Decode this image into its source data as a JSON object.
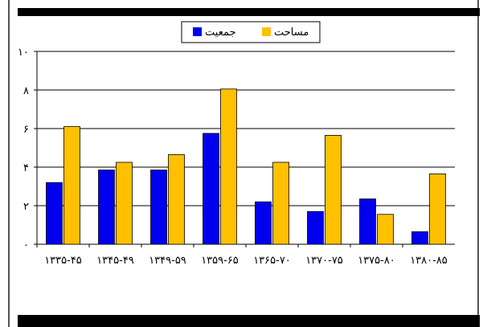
{
  "chart_data": {
    "type": "bar",
    "categories": [
      "۱۳۳۵-۴۵",
      "۱۳۴۵-۴۹",
      "۱۳۴۹-۵۹",
      "۱۳۵۹-۶۵",
      "۱۳۶۵-۷۰",
      "۱۳۷۰-۷۵",
      "۱۳۷۵-۸۰",
      "۱۳۸۰-۸۵"
    ],
    "series": [
      {
        "name": "جمعیت",
        "color": "#0000ee",
        "values": [
          3.2,
          3.85,
          3.85,
          5.75,
          2.2,
          1.7,
          2.35,
          0.65
        ]
      },
      {
        "name": "مساحت",
        "color": "#ffc000",
        "values": [
          6.1,
          4.25,
          4.65,
          8.05,
          4.25,
          5.65,
          1.55,
          3.65
        ]
      }
    ],
    "ylim": [
      0,
      10
    ],
    "yticks": [
      0,
      2,
      4,
      6,
      8,
      10
    ],
    "ytick_labels": [
      "۰",
      "۲",
      "۴",
      "۶",
      "۸",
      "۱۰"
    ],
    "grid": true,
    "legend": "top-center",
    "title": "",
    "xlabel": "",
    "ylabel": ""
  }
}
